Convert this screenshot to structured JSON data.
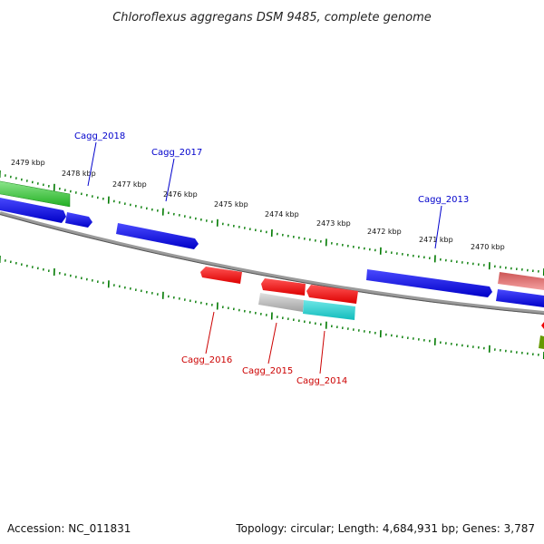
{
  "title": "Chloroflexus aggregans DSM 9485, complete genome",
  "footer": {
    "accession": "Accession: NC_011831",
    "summary": "Topology: circular; Length: 4,684,931 bp; Genes: 3,787"
  },
  "colors": {
    "backbone": "#808080",
    "ticks": "#007a00",
    "label_forward": "#0000cc",
    "label_reverse": "#cc0000",
    "gene_blue": "#0000dd",
    "gene_green": "#33cc33",
    "gene_red": "#ee0000",
    "gene_pink": "#ee7777",
    "gene_grey": "#aaaaaa",
    "gene_cyan": "#22cccc",
    "gene_olive": "#669900"
  },
  "ticks": [
    {
      "label": "2479 kbp"
    },
    {
      "label": "2478 kbp"
    },
    {
      "label": "2477 kbp"
    },
    {
      "label": "2476 kbp"
    },
    {
      "label": "2475 kbp"
    },
    {
      "label": "2474 kbp"
    },
    {
      "label": "2473 kbp"
    },
    {
      "label": "2472 kbp"
    },
    {
      "label": "2471 kbp"
    },
    {
      "label": "2470 kbp"
    }
  ],
  "gene_labels": {
    "forward": [
      "Cagg_2018",
      "Cagg_2017",
      "Cagg_2013"
    ],
    "reverse": [
      "Cagg_2016",
      "Cagg_2015",
      "Cagg_2014"
    ]
  }
}
